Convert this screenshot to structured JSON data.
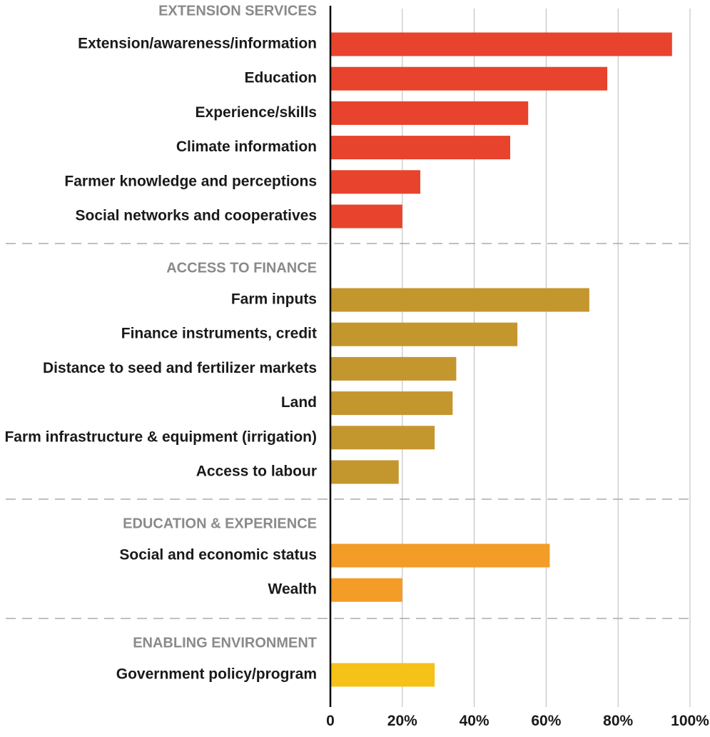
{
  "chart_data": {
    "type": "bar",
    "orientation": "horizontal",
    "xlim": [
      0,
      100
    ],
    "x_ticks": [
      "0",
      "20%",
      "40%",
      "60%",
      "80%",
      "100%"
    ],
    "grid": true,
    "groups": [
      {
        "name": "EXTENSION SERVICES",
        "color": "#e8432c",
        "categories": [
          "Extension/awareness/information",
          "Education",
          "Experience/skills",
          "Climate information",
          "Farmer knowledge and perceptions",
          "Social networks and cooperatives"
        ],
        "values": [
          95,
          77,
          55,
          50,
          25,
          20
        ]
      },
      {
        "name": "ACCESS TO FINANCE",
        "color": "#c4962e",
        "categories": [
          "Farm inputs",
          "Finance instruments, credit",
          "Distance to seed and fertilizer markets",
          "Land",
          "Farm infrastructure &  equipment (irrigation)",
          "Access to labour"
        ],
        "values": [
          72,
          52,
          35,
          34,
          29,
          19
        ]
      },
      {
        "name": "EDUCATION & EXPERIENCE",
        "color": "#f39c28",
        "categories": [
          "Social and economic status",
          "Wealth"
        ],
        "values": [
          61,
          20
        ]
      },
      {
        "name": "ENABLING ENVIRONMENT",
        "color": "#f5c218",
        "categories": [
          "Government policy/program"
        ],
        "values": [
          29
        ]
      }
    ]
  }
}
